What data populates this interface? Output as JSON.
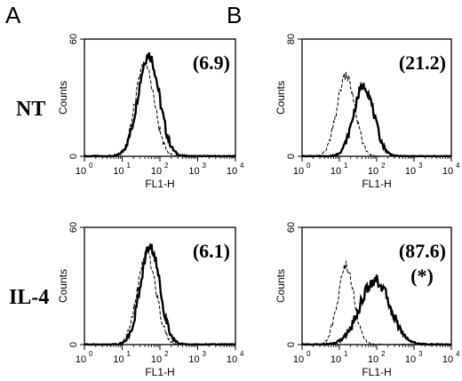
{
  "figure": {
    "panel_labels": [
      "A",
      "B"
    ],
    "row_labels": [
      "NT",
      "IL-4"
    ]
  },
  "chart_data": [
    {
      "type": "area",
      "panel": "A",
      "row": "NT",
      "annotation": "(6.9)",
      "xlabel": "FL1-H",
      "ylabel": "Counts",
      "xscale": "log",
      "xlim": [
        1,
        10000
      ],
      "ylim": [
        0,
        60
      ],
      "yticks": [
        0,
        60
      ],
      "xticks": [
        "10",
        "10",
        "10",
        "10",
        "10"
      ],
      "xtick_exponents": [
        "0",
        "1",
        "2",
        "3",
        "4"
      ],
      "series": [
        {
          "style": "solid",
          "peak_x": 50,
          "peak_y": 52,
          "width": 0.28
        },
        {
          "style": "dashed",
          "peak_x": 40,
          "peak_y": 47,
          "width": 0.25
        }
      ]
    },
    {
      "type": "area",
      "panel": "B",
      "row": "NT",
      "annotation": "(21.2)",
      "xlabel": "FL1-H",
      "ylabel": "Counts",
      "xscale": "log",
      "xlim": [
        1,
        10000
      ],
      "ylim": [
        0,
        80
      ],
      "yticks": [
        0,
        80
      ],
      "xticks": [
        "10",
        "10",
        "10",
        "10",
        "10"
      ],
      "xtick_exponents": [
        "0",
        "1",
        "2",
        "3",
        "4"
      ],
      "series": [
        {
          "style": "solid",
          "peak_x": 45,
          "peak_y": 48,
          "width": 0.27
        },
        {
          "style": "dashed",
          "peak_x": 15,
          "peak_y": 55,
          "width": 0.24
        }
      ]
    },
    {
      "type": "area",
      "panel": "A",
      "row": "IL-4",
      "annotation": "(6.1)",
      "xlabel": "FL1-H",
      "ylabel": "Counts",
      "xscale": "log",
      "xlim": [
        1,
        10000
      ],
      "ylim": [
        0,
        60
      ],
      "yticks": [
        0,
        60
      ],
      "xticks": [
        "10",
        "10",
        "10",
        "10",
        "10"
      ],
      "xtick_exponents": [
        "0",
        "1",
        "2",
        "3",
        "4"
      ],
      "series": [
        {
          "style": "solid",
          "peak_x": 55,
          "peak_y": 50,
          "width": 0.26
        },
        {
          "style": "dashed",
          "peak_x": 45,
          "peak_y": 46,
          "width": 0.25
        }
      ]
    },
    {
      "type": "area",
      "panel": "B",
      "row": "IL-4",
      "annotation": "(87.6)",
      "annotation2": "(*)",
      "xlabel": "FL1-H",
      "ylabel": "Counts",
      "xscale": "log",
      "xlim": [
        1,
        10000
      ],
      "ylim": [
        0,
        60
      ],
      "yticks": [
        0,
        60
      ],
      "xticks": [
        "10",
        "10",
        "10",
        "10",
        "10"
      ],
      "xtick_exponents": [
        "0",
        "1",
        "2",
        "3",
        "4"
      ],
      "series": [
        {
          "style": "solid",
          "peak_x": 90,
          "peak_y": 33,
          "width": 0.4
        },
        {
          "style": "dashed",
          "peak_x": 15,
          "peak_y": 40,
          "width": 0.22
        }
      ]
    }
  ]
}
